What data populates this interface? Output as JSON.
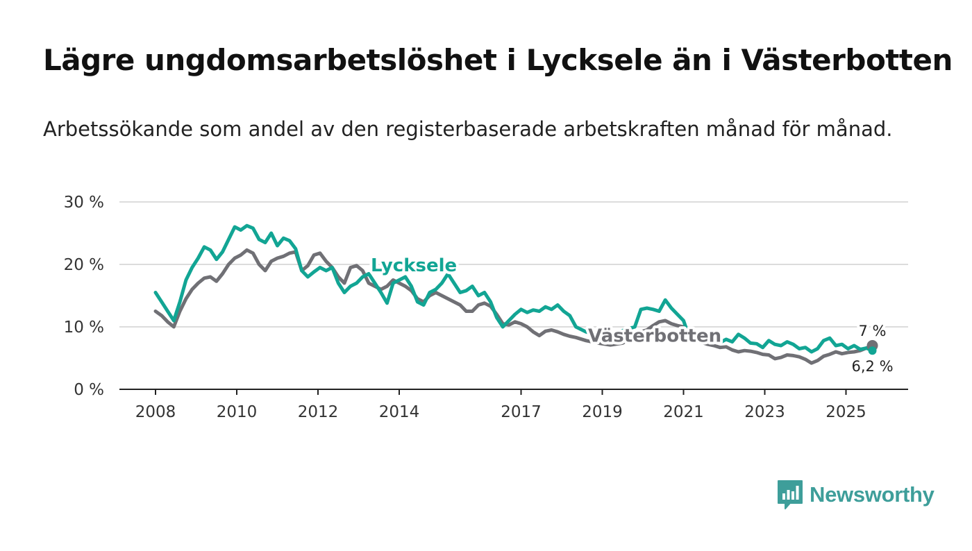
{
  "title": "Lägre ungdomsarbetslöshet i Lycksele än i Västerbotten",
  "subtitle": "Arbetssökande som andel av den registerbaserade arbetskraften månad för månad.",
  "brand": "Newsworthy",
  "colors": {
    "lycksele": "#12a594",
    "vasterbotten": "#707075",
    "grid": "#dcdcdc",
    "axis": "#222222",
    "brand": "#3e9e9a"
  },
  "chart_data": {
    "type": "line",
    "title": "Lägre ungdomsarbetslöshet i Lycksele än i Västerbotten",
    "xlabel": "",
    "ylabel": "",
    "ylim": [
      0,
      30
    ],
    "xlim": [
      2007.1,
      2026.5
    ],
    "y_ticks": [
      0,
      10,
      20,
      30
    ],
    "y_tick_labels": [
      "0 %",
      "10 %",
      "20 %",
      "30 %"
    ],
    "x_ticks": [
      2008,
      2010,
      2012,
      2014,
      2017,
      2019,
      2021,
      2023,
      2025
    ],
    "x_tick_labels": [
      "2008",
      "2010",
      "2012",
      "2014",
      "2017",
      "2019",
      "2021",
      "2023",
      "2025"
    ],
    "grid": true,
    "legend": "inline labels",
    "end_labels": {
      "vasterbotten": "7 %",
      "lycksele": "6,2 %"
    },
    "series": [
      {
        "name": "Lycksele",
        "key": "lycksele",
        "points": [
          [
            2008.0,
            15.5
          ],
          [
            2008.15,
            14.0
          ],
          [
            2008.3,
            12.5
          ],
          [
            2008.45,
            11.0
          ],
          [
            2008.6,
            14.0
          ],
          [
            2008.75,
            17.5
          ],
          [
            2008.9,
            19.5
          ],
          [
            2009.05,
            21.0
          ],
          [
            2009.2,
            22.8
          ],
          [
            2009.35,
            22.3
          ],
          [
            2009.5,
            20.8
          ],
          [
            2009.65,
            22.0
          ],
          [
            2009.8,
            24.0
          ],
          [
            2009.95,
            26.0
          ],
          [
            2010.1,
            25.5
          ],
          [
            2010.25,
            26.2
          ],
          [
            2010.4,
            25.8
          ],
          [
            2010.55,
            24.0
          ],
          [
            2010.7,
            23.5
          ],
          [
            2010.85,
            25.0
          ],
          [
            2011.0,
            23.0
          ],
          [
            2011.15,
            24.2
          ],
          [
            2011.3,
            23.8
          ],
          [
            2011.45,
            22.5
          ],
          [
            2011.6,
            19.0
          ],
          [
            2011.75,
            18.0
          ],
          [
            2011.9,
            18.8
          ],
          [
            2012.05,
            19.5
          ],
          [
            2012.2,
            19.0
          ],
          [
            2012.35,
            19.5
          ],
          [
            2012.5,
            17.0
          ],
          [
            2012.65,
            15.5
          ],
          [
            2012.8,
            16.5
          ],
          [
            2012.95,
            17.0
          ],
          [
            2013.1,
            18.0
          ],
          [
            2013.25,
            18.5
          ],
          [
            2013.4,
            17.0
          ],
          [
            2013.55,
            15.5
          ],
          [
            2013.7,
            13.8
          ],
          [
            2013.85,
            17.0
          ],
          [
            2014.0,
            17.5
          ],
          [
            2014.15,
            18.0
          ],
          [
            2014.3,
            16.5
          ],
          [
            2014.45,
            14.0
          ],
          [
            2014.6,
            13.5
          ],
          [
            2014.75,
            15.5
          ],
          [
            2014.9,
            16.0
          ],
          [
            2015.05,
            17.0
          ],
          [
            2015.2,
            18.5
          ],
          [
            2015.35,
            17.0
          ],
          [
            2015.5,
            15.5
          ],
          [
            2015.65,
            15.8
          ],
          [
            2015.8,
            16.5
          ],
          [
            2015.95,
            15.0
          ],
          [
            2016.1,
            15.5
          ],
          [
            2016.25,
            14.0
          ],
          [
            2016.4,
            11.5
          ],
          [
            2016.55,
            10.0
          ],
          [
            2016.7,
            11.0
          ],
          [
            2016.85,
            12.0
          ],
          [
            2017.0,
            12.8
          ],
          [
            2017.15,
            12.3
          ],
          [
            2017.3,
            12.7
          ],
          [
            2017.45,
            12.5
          ],
          [
            2017.6,
            13.2
          ],
          [
            2017.75,
            12.8
          ],
          [
            2017.9,
            13.5
          ],
          [
            2018.05,
            12.5
          ],
          [
            2018.2,
            11.8
          ],
          [
            2018.35,
            10.0
          ],
          [
            2018.6,
            9.2
          ],
          [
            2018.9,
            8.6
          ],
          [
            2019.2,
            8.9
          ],
          [
            2019.5,
            9.4
          ],
          [
            2019.8,
            10.0
          ],
          [
            2019.95,
            12.8
          ],
          [
            2020.1,
            13.0
          ],
          [
            2020.25,
            12.8
          ],
          [
            2020.4,
            12.5
          ],
          [
            2020.55,
            14.3
          ],
          [
            2020.7,
            13.0
          ],
          [
            2020.85,
            12.0
          ],
          [
            2021.0,
            11.0
          ],
          [
            2021.15,
            8.2
          ],
          [
            2021.3,
            8.0
          ],
          [
            2021.45,
            7.8
          ],
          [
            2021.6,
            8.7
          ],
          [
            2021.75,
            8.0
          ],
          [
            2021.9,
            7.5
          ],
          [
            2022.05,
            8.0
          ],
          [
            2022.2,
            7.6
          ],
          [
            2022.35,
            8.8
          ],
          [
            2022.5,
            8.2
          ],
          [
            2022.65,
            7.4
          ],
          [
            2022.8,
            7.3
          ],
          [
            2022.95,
            6.7
          ],
          [
            2023.1,
            7.8
          ],
          [
            2023.25,
            7.2
          ],
          [
            2023.4,
            7.0
          ],
          [
            2023.55,
            7.6
          ],
          [
            2023.7,
            7.2
          ],
          [
            2023.85,
            6.5
          ],
          [
            2024.0,
            6.7
          ],
          [
            2024.15,
            6.0
          ],
          [
            2024.3,
            6.5
          ],
          [
            2024.45,
            7.8
          ],
          [
            2024.6,
            8.2
          ],
          [
            2024.75,
            7.0
          ],
          [
            2024.9,
            7.2
          ],
          [
            2025.05,
            6.5
          ],
          [
            2025.2,
            7.0
          ],
          [
            2025.35,
            6.4
          ],
          [
            2025.5,
            6.6
          ],
          [
            2025.65,
            6.2
          ]
        ]
      },
      {
        "name": "Västerbotten",
        "key": "vasterbotten",
        "points": [
          [
            2008.0,
            12.5
          ],
          [
            2008.15,
            11.8
          ],
          [
            2008.3,
            10.8
          ],
          [
            2008.45,
            10.0
          ],
          [
            2008.6,
            12.5
          ],
          [
            2008.75,
            14.5
          ],
          [
            2008.9,
            16.0
          ],
          [
            2009.05,
            17.0
          ],
          [
            2009.2,
            17.8
          ],
          [
            2009.35,
            18.0
          ],
          [
            2009.5,
            17.3
          ],
          [
            2009.65,
            18.5
          ],
          [
            2009.8,
            20.0
          ],
          [
            2009.95,
            21.0
          ],
          [
            2010.1,
            21.5
          ],
          [
            2010.25,
            22.3
          ],
          [
            2010.4,
            21.8
          ],
          [
            2010.55,
            20.0
          ],
          [
            2010.7,
            19.0
          ],
          [
            2010.85,
            20.5
          ],
          [
            2011.0,
            21.0
          ],
          [
            2011.15,
            21.3
          ],
          [
            2011.3,
            21.8
          ],
          [
            2011.45,
            22.0
          ],
          [
            2011.6,
            19.0
          ],
          [
            2011.75,
            19.8
          ],
          [
            2011.9,
            21.5
          ],
          [
            2012.05,
            21.8
          ],
          [
            2012.2,
            20.5
          ],
          [
            2012.35,
            19.5
          ],
          [
            2012.5,
            18.0
          ],
          [
            2012.65,
            17.0
          ],
          [
            2012.8,
            19.5
          ],
          [
            2012.95,
            19.8
          ],
          [
            2013.1,
            19.0
          ],
          [
            2013.25,
            17.0
          ],
          [
            2013.4,
            16.5
          ],
          [
            2013.55,
            16.0
          ],
          [
            2013.7,
            16.5
          ],
          [
            2013.85,
            17.5
          ],
          [
            2014.0,
            17.0
          ],
          [
            2014.15,
            16.5
          ],
          [
            2014.3,
            15.8
          ],
          [
            2014.45,
            14.5
          ],
          [
            2014.6,
            14.0
          ],
          [
            2014.75,
            15.0
          ],
          [
            2014.9,
            15.5
          ],
          [
            2015.05,
            15.0
          ],
          [
            2015.2,
            14.5
          ],
          [
            2015.35,
            14.0
          ],
          [
            2015.5,
            13.5
          ],
          [
            2015.65,
            12.5
          ],
          [
            2015.8,
            12.5
          ],
          [
            2015.95,
            13.5
          ],
          [
            2016.1,
            13.8
          ],
          [
            2016.25,
            13.3
          ],
          [
            2016.4,
            12.0
          ],
          [
            2016.55,
            10.5
          ],
          [
            2016.7,
            10.3
          ],
          [
            2016.85,
            10.8
          ],
          [
            2017.0,
            10.5
          ],
          [
            2017.15,
            10.0
          ],
          [
            2017.3,
            9.2
          ],
          [
            2017.45,
            8.6
          ],
          [
            2017.6,
            9.3
          ],
          [
            2017.75,
            9.5
          ],
          [
            2017.9,
            9.2
          ],
          [
            2018.05,
            8.8
          ],
          [
            2018.2,
            8.5
          ],
          [
            2018.35,
            8.3
          ],
          [
            2018.6,
            7.8
          ],
          [
            2018.9,
            7.4
          ],
          [
            2019.2,
            7.1
          ],
          [
            2019.5,
            7.4
          ],
          [
            2019.8,
            8.6
          ],
          [
            2019.95,
            9.2
          ],
          [
            2020.1,
            9.5
          ],
          [
            2020.25,
            10.2
          ],
          [
            2020.4,
            10.8
          ],
          [
            2020.55,
            11.0
          ],
          [
            2020.7,
            10.5
          ],
          [
            2020.85,
            10.2
          ],
          [
            2021.0,
            10.0
          ],
          [
            2021.15,
            8.0
          ],
          [
            2021.3,
            7.8
          ],
          [
            2021.45,
            7.5
          ],
          [
            2021.6,
            7.2
          ],
          [
            2021.75,
            7.0
          ],
          [
            2021.9,
            6.7
          ],
          [
            2022.05,
            6.8
          ],
          [
            2022.2,
            6.3
          ],
          [
            2022.35,
            6.0
          ],
          [
            2022.5,
            6.2
          ],
          [
            2022.65,
            6.1
          ],
          [
            2022.8,
            5.9
          ],
          [
            2022.95,
            5.6
          ],
          [
            2023.1,
            5.5
          ],
          [
            2023.25,
            4.9
          ],
          [
            2023.4,
            5.1
          ],
          [
            2023.55,
            5.5
          ],
          [
            2023.7,
            5.4
          ],
          [
            2023.85,
            5.2
          ],
          [
            2024.0,
            4.8
          ],
          [
            2024.15,
            4.2
          ],
          [
            2024.3,
            4.6
          ],
          [
            2024.45,
            5.3
          ],
          [
            2024.6,
            5.6
          ],
          [
            2024.75,
            6.0
          ],
          [
            2024.9,
            5.7
          ],
          [
            2025.05,
            5.9
          ],
          [
            2025.2,
            6.0
          ],
          [
            2025.35,
            6.2
          ],
          [
            2025.5,
            6.6
          ],
          [
            2025.65,
            7.0
          ]
        ]
      }
    ]
  }
}
